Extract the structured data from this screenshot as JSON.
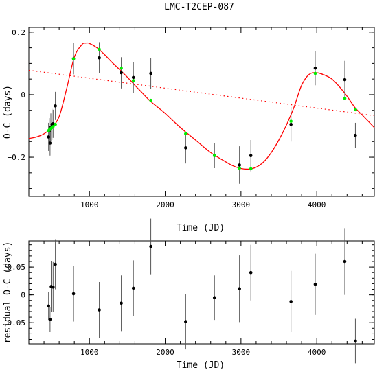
{
  "chart_data": [
    {
      "type": "scatter",
      "title": "LMC-T2CEP-087",
      "xlabel": "Time (JD)",
      "ylabel": "O-C (days)",
      "xlim": [
        200,
        4760
      ],
      "ylim": [
        -0.325,
        0.215
      ],
      "xticks": [
        1000,
        2000,
        3000,
        4000
      ],
      "xtick_labels": [
        "1000",
        "2000",
        "3000",
        "4000"
      ],
      "yticks": [
        0.2,
        0.0,
        -0.2
      ],
      "ytick_labels": [
        "0.2",
        "0",
        "−0.2"
      ],
      "grid": false,
      "observed_color": "#000000",
      "model_color": "#ff0000",
      "model_point_color": "#00ee00",
      "observed": [
        {
          "x": 460,
          "y": -0.135,
          "err": 0.045
        },
        {
          "x": 470,
          "y": -0.115,
          "err": 0.04
        },
        {
          "x": 480,
          "y": -0.155,
          "err": 0.04
        },
        {
          "x": 490,
          "y": -0.105,
          "err": 0.045
        },
        {
          "x": 505,
          "y": -0.095,
          "err": 0.05
        },
        {
          "x": 520,
          "y": -0.093,
          "err": 0.045
        },
        {
          "x": 550,
          "y": -0.036,
          "err": 0.045
        },
        {
          "x": 790,
          "y": 0.115,
          "err": 0.05
        },
        {
          "x": 1130,
          "y": 0.118,
          "err": 0.05
        },
        {
          "x": 1420,
          "y": 0.07,
          "err": 0.05
        },
        {
          "x": 1580,
          "y": 0.055,
          "err": 0.05
        },
        {
          "x": 1810,
          "y": 0.068,
          "err": 0.05
        },
        {
          "x": 2270,
          "y": -0.17,
          "err": 0.05
        },
        {
          "x": 2650,
          "y": -0.195,
          "err": 0.04
        },
        {
          "x": 2980,
          "y": -0.225,
          "err": 0.06
        },
        {
          "x": 3130,
          "y": -0.195,
          "err": 0.05
        },
        {
          "x": 3660,
          "y": -0.095,
          "err": 0.055
        },
        {
          "x": 3980,
          "y": 0.085,
          "err": 0.055
        },
        {
          "x": 4370,
          "y": 0.048,
          "err": 0.06
        },
        {
          "x": 4510,
          "y": -0.13,
          "err": 0.04
        }
      ],
      "model_points": [
        {
          "x": 460,
          "y": -0.115
        },
        {
          "x": 470,
          "y": -0.113
        },
        {
          "x": 480,
          "y": -0.11
        },
        {
          "x": 490,
          "y": -0.108
        },
        {
          "x": 505,
          "y": -0.105
        },
        {
          "x": 520,
          "y": -0.102
        },
        {
          "x": 550,
          "y": -0.095
        },
        {
          "x": 790,
          "y": 0.115
        },
        {
          "x": 1130,
          "y": 0.145
        },
        {
          "x": 1420,
          "y": 0.085
        },
        {
          "x": 1580,
          "y": 0.045
        },
        {
          "x": 1810,
          "y": -0.018
        },
        {
          "x": 2270,
          "y": -0.125
        },
        {
          "x": 2650,
          "y": -0.195
        },
        {
          "x": 2980,
          "y": -0.235
        },
        {
          "x": 3130,
          "y": -0.237
        },
        {
          "x": 3660,
          "y": -0.085
        },
        {
          "x": 3980,
          "y": 0.068
        },
        {
          "x": 4370,
          "y": -0.012
        },
        {
          "x": 4510,
          "y": -0.048
        }
      ],
      "model_curve": {
        "x": [
          200,
          300,
          400,
          500,
          600,
          700,
          800,
          900,
          950,
          1000,
          1100,
          1200,
          1300,
          1400,
          1500,
          1600,
          1700,
          1800,
          1900,
          2000,
          2200,
          2400,
          2600,
          2800,
          2900,
          3000,
          3100,
          3200,
          3300,
          3400,
          3500,
          3600,
          3700,
          3800,
          3900,
          4000,
          4100,
          4200,
          4300,
          4400,
          4500,
          4600,
          4700,
          4760
        ],
        "y": [
          -0.14,
          -0.135,
          -0.125,
          -0.105,
          -0.07,
          0.02,
          0.12,
          0.16,
          0.165,
          0.164,
          0.15,
          0.128,
          0.103,
          0.08,
          0.056,
          0.03,
          0.005,
          -0.02,
          -0.04,
          -0.06,
          -0.105,
          -0.145,
          -0.185,
          -0.215,
          -0.228,
          -0.236,
          -0.238,
          -0.232,
          -0.215,
          -0.185,
          -0.145,
          -0.097,
          -0.04,
          0.03,
          0.065,
          0.07,
          0.063,
          0.05,
          0.025,
          -0.005,
          -0.04,
          -0.065,
          -0.09,
          -0.105
        ]
      },
      "trend": {
        "x": [
          200,
          4760
        ],
        "y": [
          0.078,
          -0.067
        ]
      }
    },
    {
      "type": "scatter",
      "xlabel": "Time (JD)",
      "ylabel": "residual O-C (days)",
      "xlim": [
        200,
        4760
      ],
      "ylim": [
        -0.088,
        0.097
      ],
      "xticks": [
        1000,
        2000,
        3000,
        4000
      ],
      "xtick_labels": [
        "1000",
        "2000",
        "3000",
        "4000"
      ],
      "yticks": [
        0.05,
        0.0,
        -0.05
      ],
      "ytick_labels": [
        "0.05",
        "0",
        "−0.05"
      ],
      "grid": false,
      "residuals": [
        {
          "x": 460,
          "y": -0.02,
          "err": 0.025
        },
        {
          "x": 480,
          "y": -0.044,
          "err": 0.022
        },
        {
          "x": 495,
          "y": 0.015,
          "err": 0.045
        },
        {
          "x": 520,
          "y": 0.014,
          "err": 0.045
        },
        {
          "x": 550,
          "y": 0.055,
          "err": 0.045
        },
        {
          "x": 790,
          "y": 0.002,
          "err": 0.05
        },
        {
          "x": 1130,
          "y": -0.027,
          "err": 0.05
        },
        {
          "x": 1420,
          "y": -0.015,
          "err": 0.05
        },
        {
          "x": 1580,
          "y": 0.012,
          "err": 0.05
        },
        {
          "x": 1810,
          "y": 0.087,
          "err": 0.05
        },
        {
          "x": 2270,
          "y": -0.048,
          "err": 0.05
        },
        {
          "x": 2650,
          "y": -0.005,
          "err": 0.04
        },
        {
          "x": 2980,
          "y": 0.011,
          "err": 0.06
        },
        {
          "x": 3130,
          "y": 0.04,
          "err": 0.05
        },
        {
          "x": 3660,
          "y": -0.012,
          "err": 0.055
        },
        {
          "x": 3980,
          "y": 0.019,
          "err": 0.055
        },
        {
          "x": 4370,
          "y": 0.06,
          "err": 0.06
        },
        {
          "x": 4510,
          "y": -0.083,
          "err": 0.04
        }
      ]
    }
  ]
}
